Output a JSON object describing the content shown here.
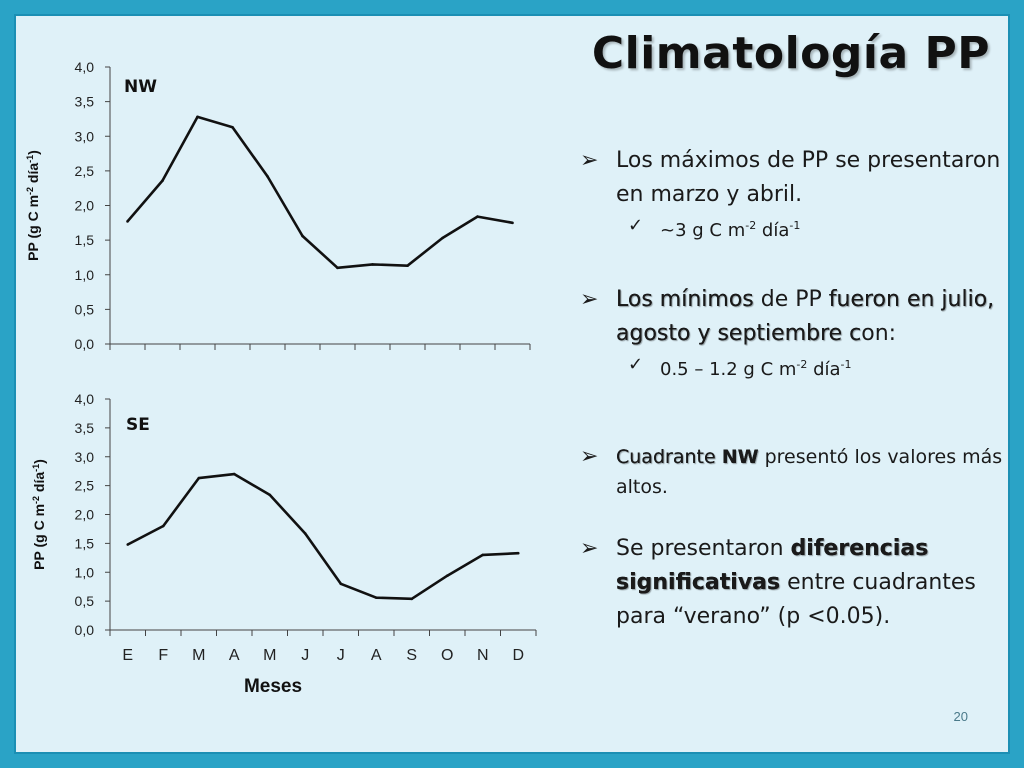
{
  "title": "Climatología PP",
  "page_number": "20",
  "bullets": {
    "b1_line": "Los máximos de PP se presentaron en marzo y abril.",
    "b1_sub_prefix": "~3 g C m",
    "b1_sub_exp1": "-2",
    "b1_sub_mid": " día",
    "b1_sub_exp2": "-1",
    "b2_part1": "Los mínimos",
    "b2_part2": " de PP ",
    "b2_part3": "fueron en julio, agosto y septiembre c",
    "b2_part4": "on:",
    "b2_sub_prefix": "0.5 – 1.2 g C m",
    "b2_sub_exp1": "-2",
    "b2_sub_mid": " día",
    "b2_sub_exp2": "-1",
    "b3_part1": "Cuadrante ",
    "b3_part2": "NW",
    "b3_part3": " presentó los valores más altos.",
    "b4_part1": "Se presentaron ",
    "b4_part2": "diferencias significativas",
    "b4_part3": " entre cuadrantes para “verano” (p <0.05)."
  },
  "chart_data": [
    {
      "type": "line",
      "panel_label": "NW",
      "categories": [
        "E",
        "F",
        "M",
        "A",
        "M",
        "J",
        "J",
        "A",
        "S",
        "O",
        "N",
        "D"
      ],
      "values": [
        1.77,
        2.36,
        3.28,
        3.13,
        2.42,
        1.56,
        1.1,
        1.15,
        1.13,
        1.53,
        1.84,
        1.75
      ],
      "ylabel": "PP (g C m-2 día-1)",
      "ylim": [
        0,
        4.0
      ],
      "yticks": [
        "0,0",
        "0,5",
        "1,0",
        "1,5",
        "2,0",
        "2,5",
        "3,0",
        "3,5",
        "4,0"
      ],
      "show_x_labels": false,
      "grid": false
    },
    {
      "type": "line",
      "panel_label": "SE",
      "categories": [
        "E",
        "F",
        "M",
        "A",
        "M",
        "J",
        "J",
        "A",
        "S",
        "O",
        "N",
        "D"
      ],
      "values": [
        1.48,
        1.8,
        2.63,
        2.7,
        2.34,
        1.67,
        0.8,
        0.56,
        0.54,
        0.94,
        1.3,
        1.33
      ],
      "ylabel": "PP (g C m-2 día-1)",
      "xlabel": "Meses",
      "ylim": [
        0,
        4.0
      ],
      "yticks": [
        "0,0",
        "0,5",
        "1,0",
        "1,5",
        "2,0",
        "2,5",
        "3,0",
        "3,5",
        "4,0"
      ],
      "show_x_labels": true,
      "grid": false
    }
  ],
  "colors": {
    "background": "#2aa3c6",
    "slide": "#dff1f8",
    "line": "#111111"
  }
}
